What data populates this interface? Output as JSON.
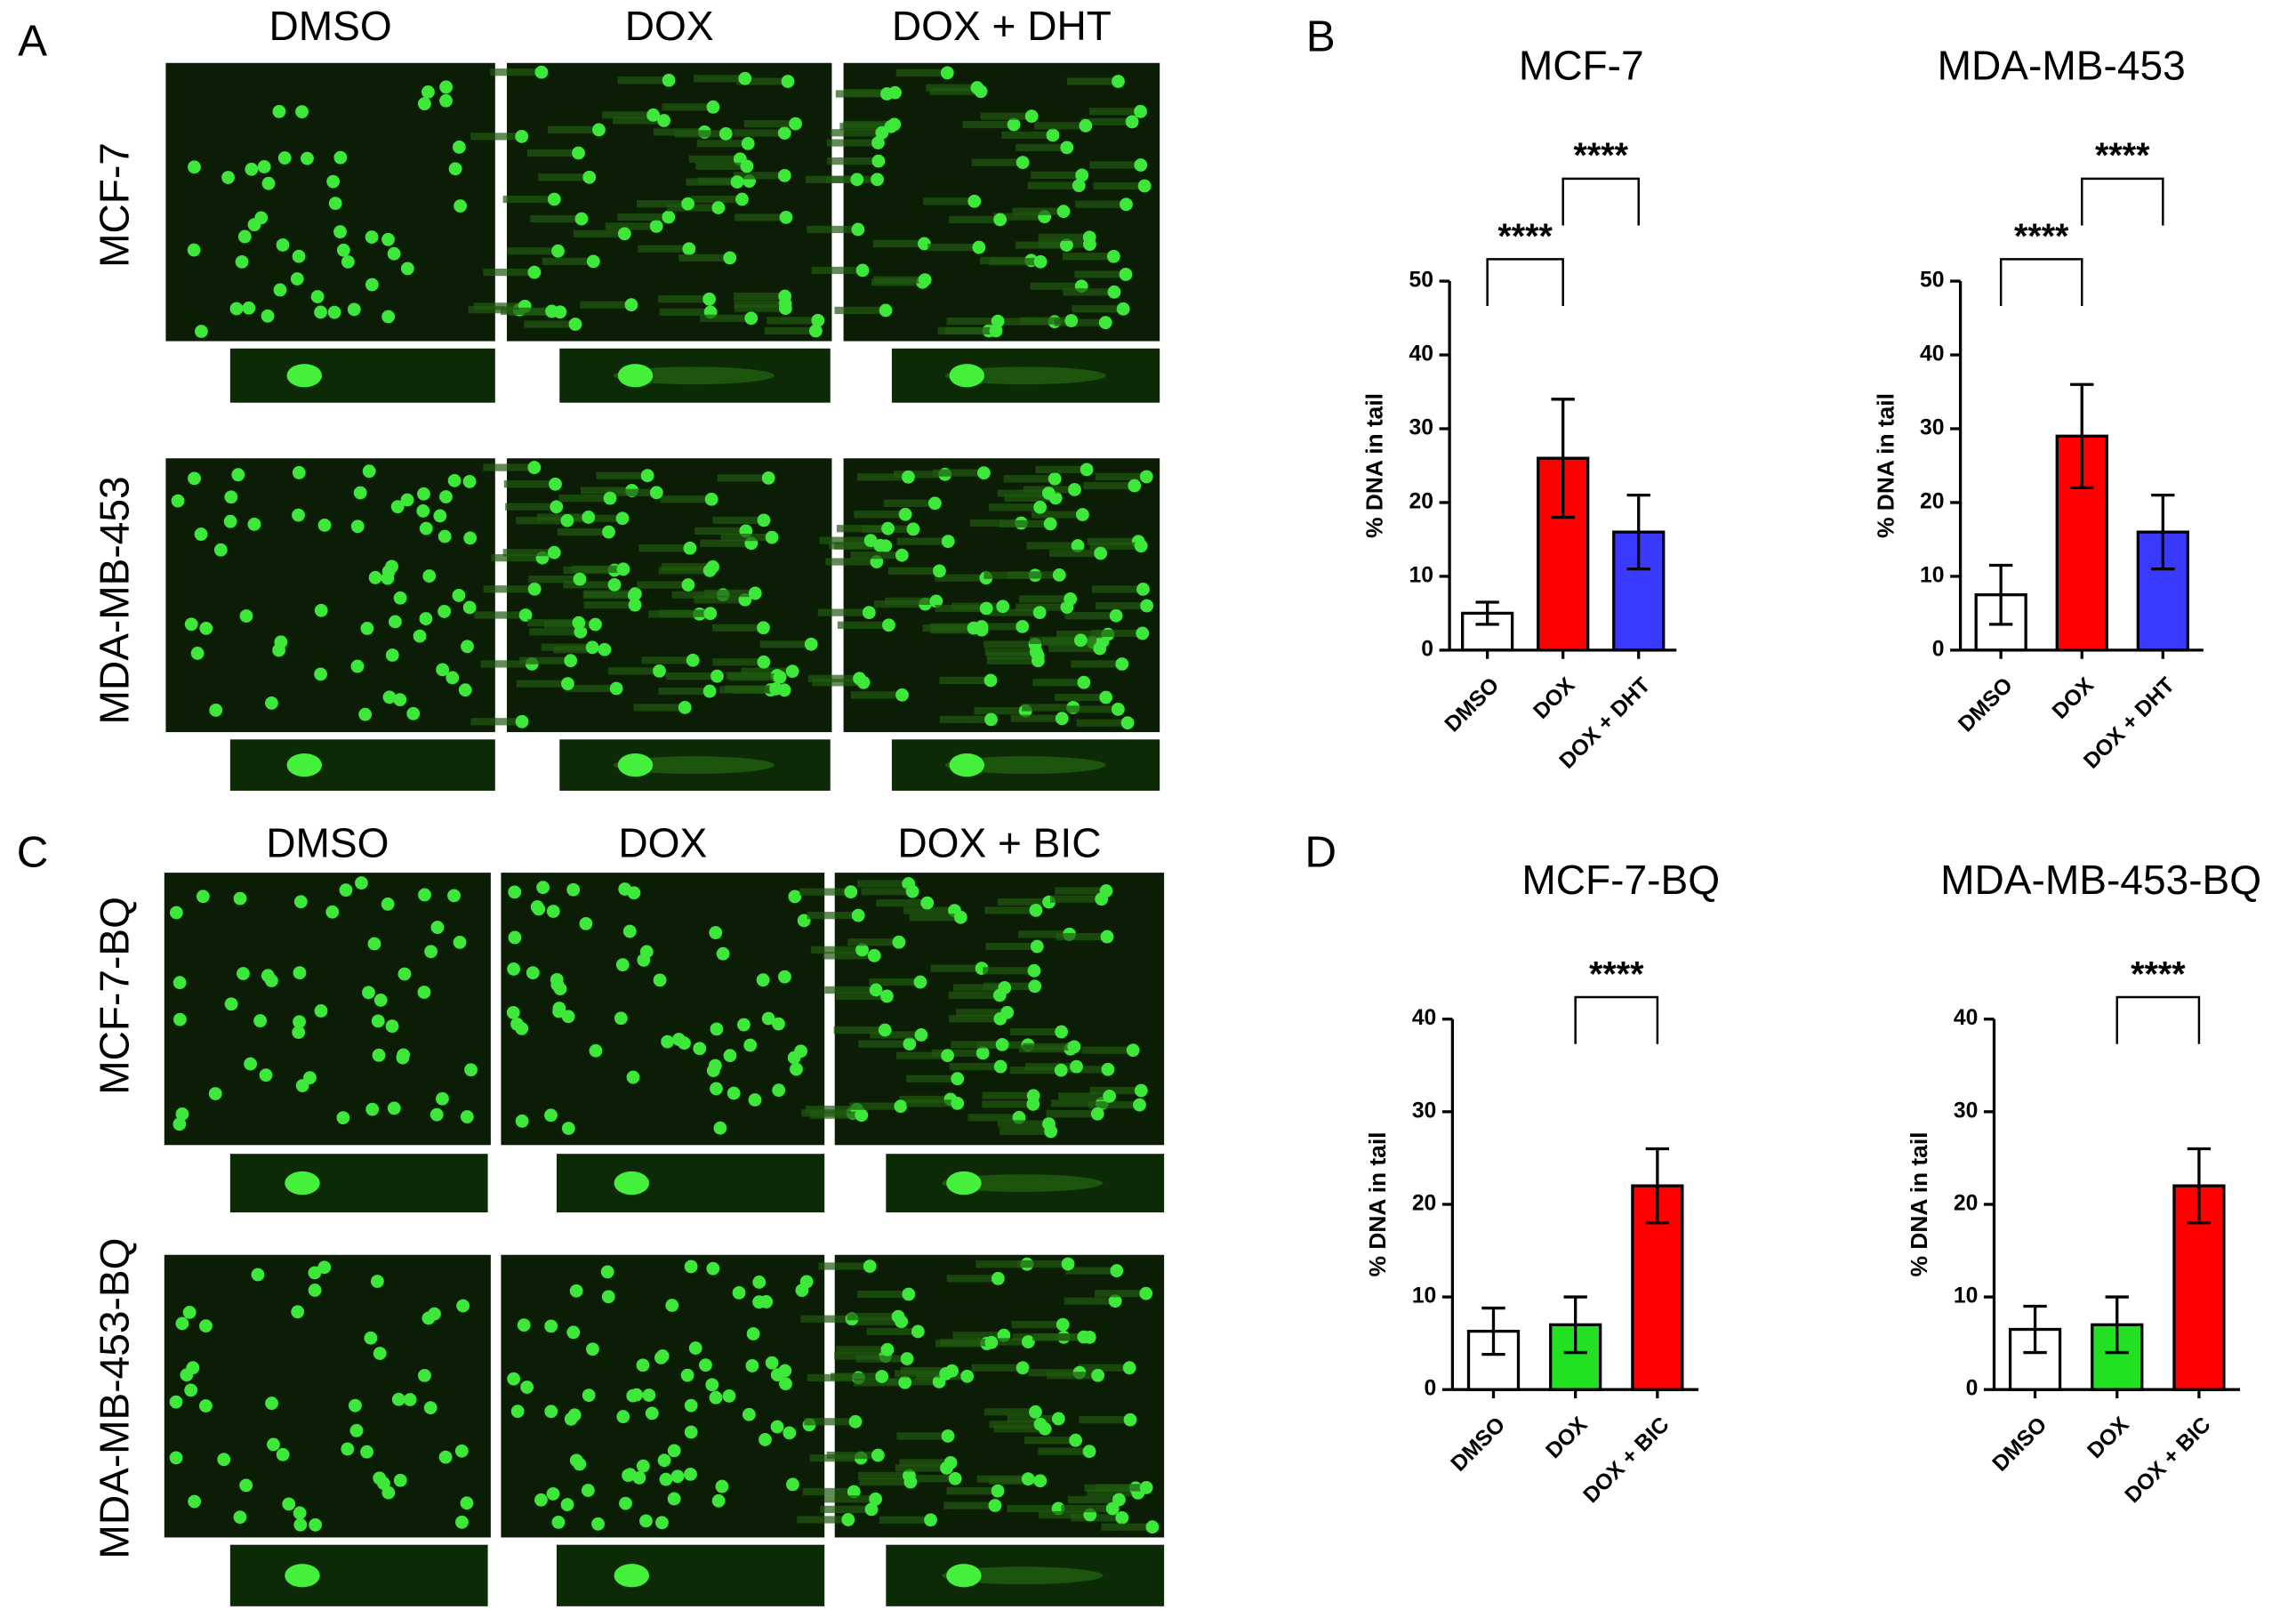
{
  "panel_labels": [
    "A",
    "B",
    "C",
    "D"
  ],
  "image_panels": [
    {
      "columns": [
        "DMSO",
        "DOX",
        "DOX + DHT"
      ],
      "rows": [
        "MCF-7",
        "MDA-MB-453"
      ]
    },
    {
      "columns": [
        "DMSO",
        "DOX",
        "DOX + BIC"
      ],
      "rows": [
        "MCF-7-BQ",
        "MDA-MB-453-BQ"
      ]
    }
  ],
  "chart_data": [
    {
      "type": "bar",
      "title": "MCF-7",
      "ylabel": "% DNA in tail",
      "categories": [
        "DMSO",
        "DOX",
        "DOX + DHT"
      ],
      "values": [
        5,
        26,
        16
      ],
      "errors": [
        1.5,
        8,
        5
      ],
      "colors": [
        "#ffffff",
        "#ff0000",
        "#3a3aff"
      ],
      "ylim": [
        0,
        50
      ],
      "yticks": [
        0,
        10,
        20,
        30,
        40,
        50
      ],
      "significance": [
        {
          "label": "****",
          "pair": [
            "DMSO",
            "DOX"
          ]
        },
        {
          "label": "****",
          "pair": [
            "DOX",
            "DOX + DHT"
          ]
        }
      ]
    },
    {
      "type": "bar",
      "title": "MDA-MB-453",
      "ylabel": "% DNA in tail",
      "categories": [
        "DMSO",
        "DOX",
        "DOX + DHT"
      ],
      "values": [
        7.5,
        29,
        16
      ],
      "errors": [
        4,
        7,
        5
      ],
      "colors": [
        "#ffffff",
        "#ff0000",
        "#3a3aff"
      ],
      "ylim": [
        0,
        50
      ],
      "yticks": [
        0,
        10,
        20,
        30,
        40,
        50
      ],
      "significance": [
        {
          "label": "****",
          "pair": [
            "DMSO",
            "DOX"
          ]
        },
        {
          "label": "****",
          "pair": [
            "DOX",
            "DOX + DHT"
          ]
        }
      ]
    },
    {
      "type": "bar",
      "title": "MCF-7-BQ",
      "ylabel": "% DNA in tail",
      "categories": [
        "DMSO",
        "DOX",
        "DOX + BIC"
      ],
      "values": [
        6.3,
        7,
        22
      ],
      "errors": [
        2.5,
        3,
        4
      ],
      "colors": [
        "#ffffff",
        "#22e022",
        "#ff0000"
      ],
      "ylim": [
        0,
        40
      ],
      "yticks": [
        0,
        10,
        20,
        30,
        40
      ],
      "significance": [
        {
          "label": "****",
          "pair": [
            "DOX",
            "DOX + BIC"
          ]
        }
      ]
    },
    {
      "type": "bar",
      "title": "MDA-MB-453-BQ",
      "ylabel": "% DNA in tail",
      "categories": [
        "DMSO",
        "DOX",
        "DOX + BIC"
      ],
      "values": [
        6.5,
        7,
        22
      ],
      "errors": [
        2.5,
        3,
        4
      ],
      "colors": [
        "#ffffff",
        "#22e022",
        "#ff0000"
      ],
      "ylim": [
        0,
        40
      ],
      "yticks": [
        0,
        10,
        20,
        30,
        40
      ],
      "significance": [
        {
          "label": "****",
          "pair": [
            "DOX",
            "DOX + BIC"
          ]
        }
      ]
    }
  ]
}
